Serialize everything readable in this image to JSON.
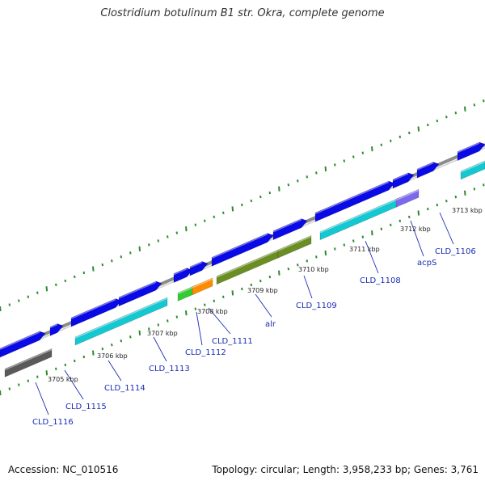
{
  "title": "Clostridium botulinum B1 str. Okra, complete genome",
  "footer": {
    "accession": "Accession: NC_010516",
    "topology": "Topology: circular; Length: 3,958,233 bp; Genes: 3,761"
  },
  "colors": {
    "backbone": "#8c8c8c",
    "forward_cds": "#0a0ae6",
    "cyan_feature": "#14c8d2",
    "olive_feature": "#6b8e23",
    "gray_feature": "#5a5a5a",
    "green_feature": "#33cc33",
    "orange_feature": "#ff8c00",
    "purple_feature": "#7b68ee",
    "label": "#1a2db5",
    "dotted_track": "#2e8b2e"
  },
  "tick_labels": [
    "3705 kbp",
    "3706 kbp",
    "3707 kbp",
    "3708 kbp",
    "3709 kbp",
    "3710 kbp",
    "3711 kbp",
    "3712 kbp",
    "3713 kbp"
  ],
  "gene_labels": [
    "CLD_1116",
    "CLD_1115",
    "CLD_1114",
    "CLD_1113",
    "CLD_1112",
    "CLD_1111",
    "alr",
    "CLD_1109",
    "CLD_1108",
    "acpS",
    "CLD_1106"
  ]
}
